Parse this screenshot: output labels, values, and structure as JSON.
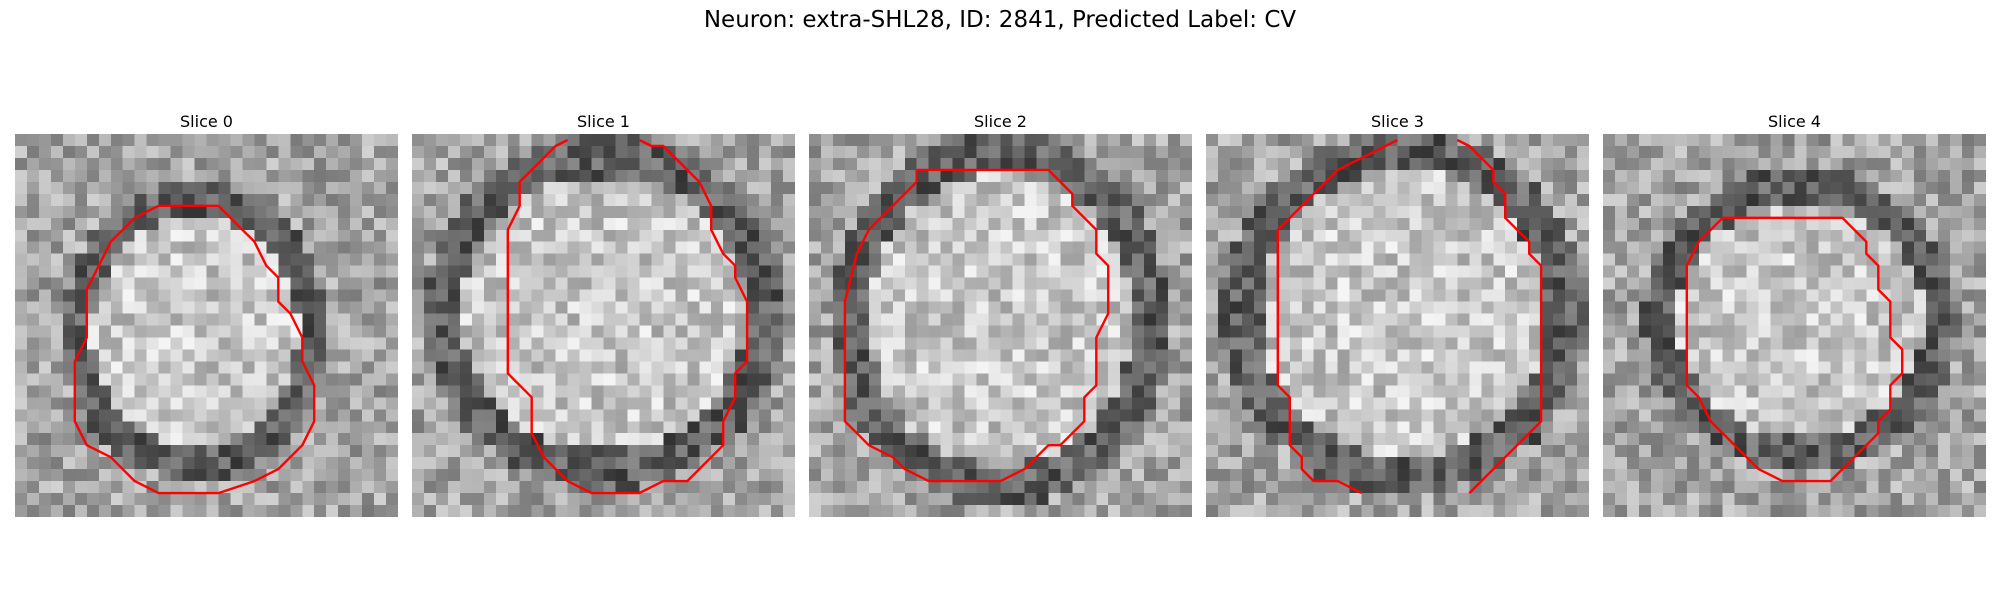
{
  "figure": {
    "title": "Neuron: extra-SHL28, ID: 2841, Predicted Label: CV"
  },
  "colors": {
    "contour": "#ff0000",
    "background": "#ffffff"
  },
  "slices": [
    {
      "title": "Slice 0"
    },
    {
      "title": "Slice 1"
    },
    {
      "title": "Slice 2"
    },
    {
      "title": "Slice 3"
    },
    {
      "title": "Slice 4"
    }
  ]
}
